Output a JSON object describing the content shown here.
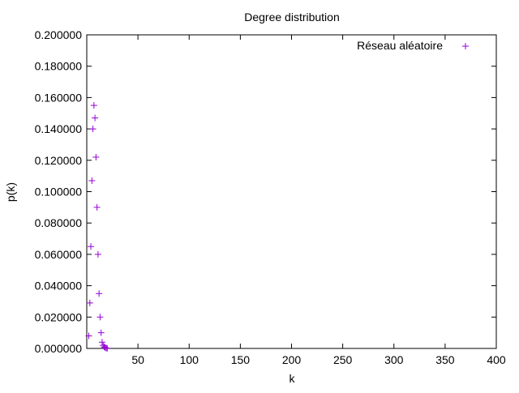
{
  "chart_data": {
    "type": "scatter",
    "title": "Degree distribution",
    "xlabel": "k",
    "ylabel": "p(k)",
    "xlim": [
      0,
      400
    ],
    "ylim": [
      0,
      0.2
    ],
    "x_ticks": [
      50,
      100,
      150,
      200,
      250,
      300,
      350,
      400
    ],
    "x_tick_labels": [
      "50",
      "100",
      "150",
      "200",
      "250",
      "300",
      "350",
      "400"
    ],
    "y_ticks": [
      0,
      0.02,
      0.04,
      0.06,
      0.08,
      0.1,
      0.12,
      0.14,
      0.16,
      0.18,
      0.2
    ],
    "y_tick_labels": [
      "0.000000",
      "0.020000",
      "0.040000",
      "0.060000",
      "0.080000",
      "0.100000",
      "0.120000",
      "0.140000",
      "0.160000",
      "0.180000",
      "0.200000"
    ],
    "grid": false,
    "legend_position": "top-right",
    "marker": "+",
    "color": "#9400d3",
    "series": [
      {
        "name": "Réseau aléatoire",
        "x": [
          2,
          3,
          4,
          5,
          6,
          7,
          8,
          9,
          10,
          11,
          12,
          13,
          14,
          15,
          16,
          17,
          18,
          19,
          20
        ],
        "y": [
          0.008,
          0.029,
          0.065,
          0.107,
          0.14,
          0.155,
          0.147,
          0.122,
          0.09,
          0.06,
          0.035,
          0.02,
          0.01,
          0.004,
          0.002,
          0.001,
          0.0005,
          0.0002,
          0.0001
        ]
      }
    ]
  }
}
